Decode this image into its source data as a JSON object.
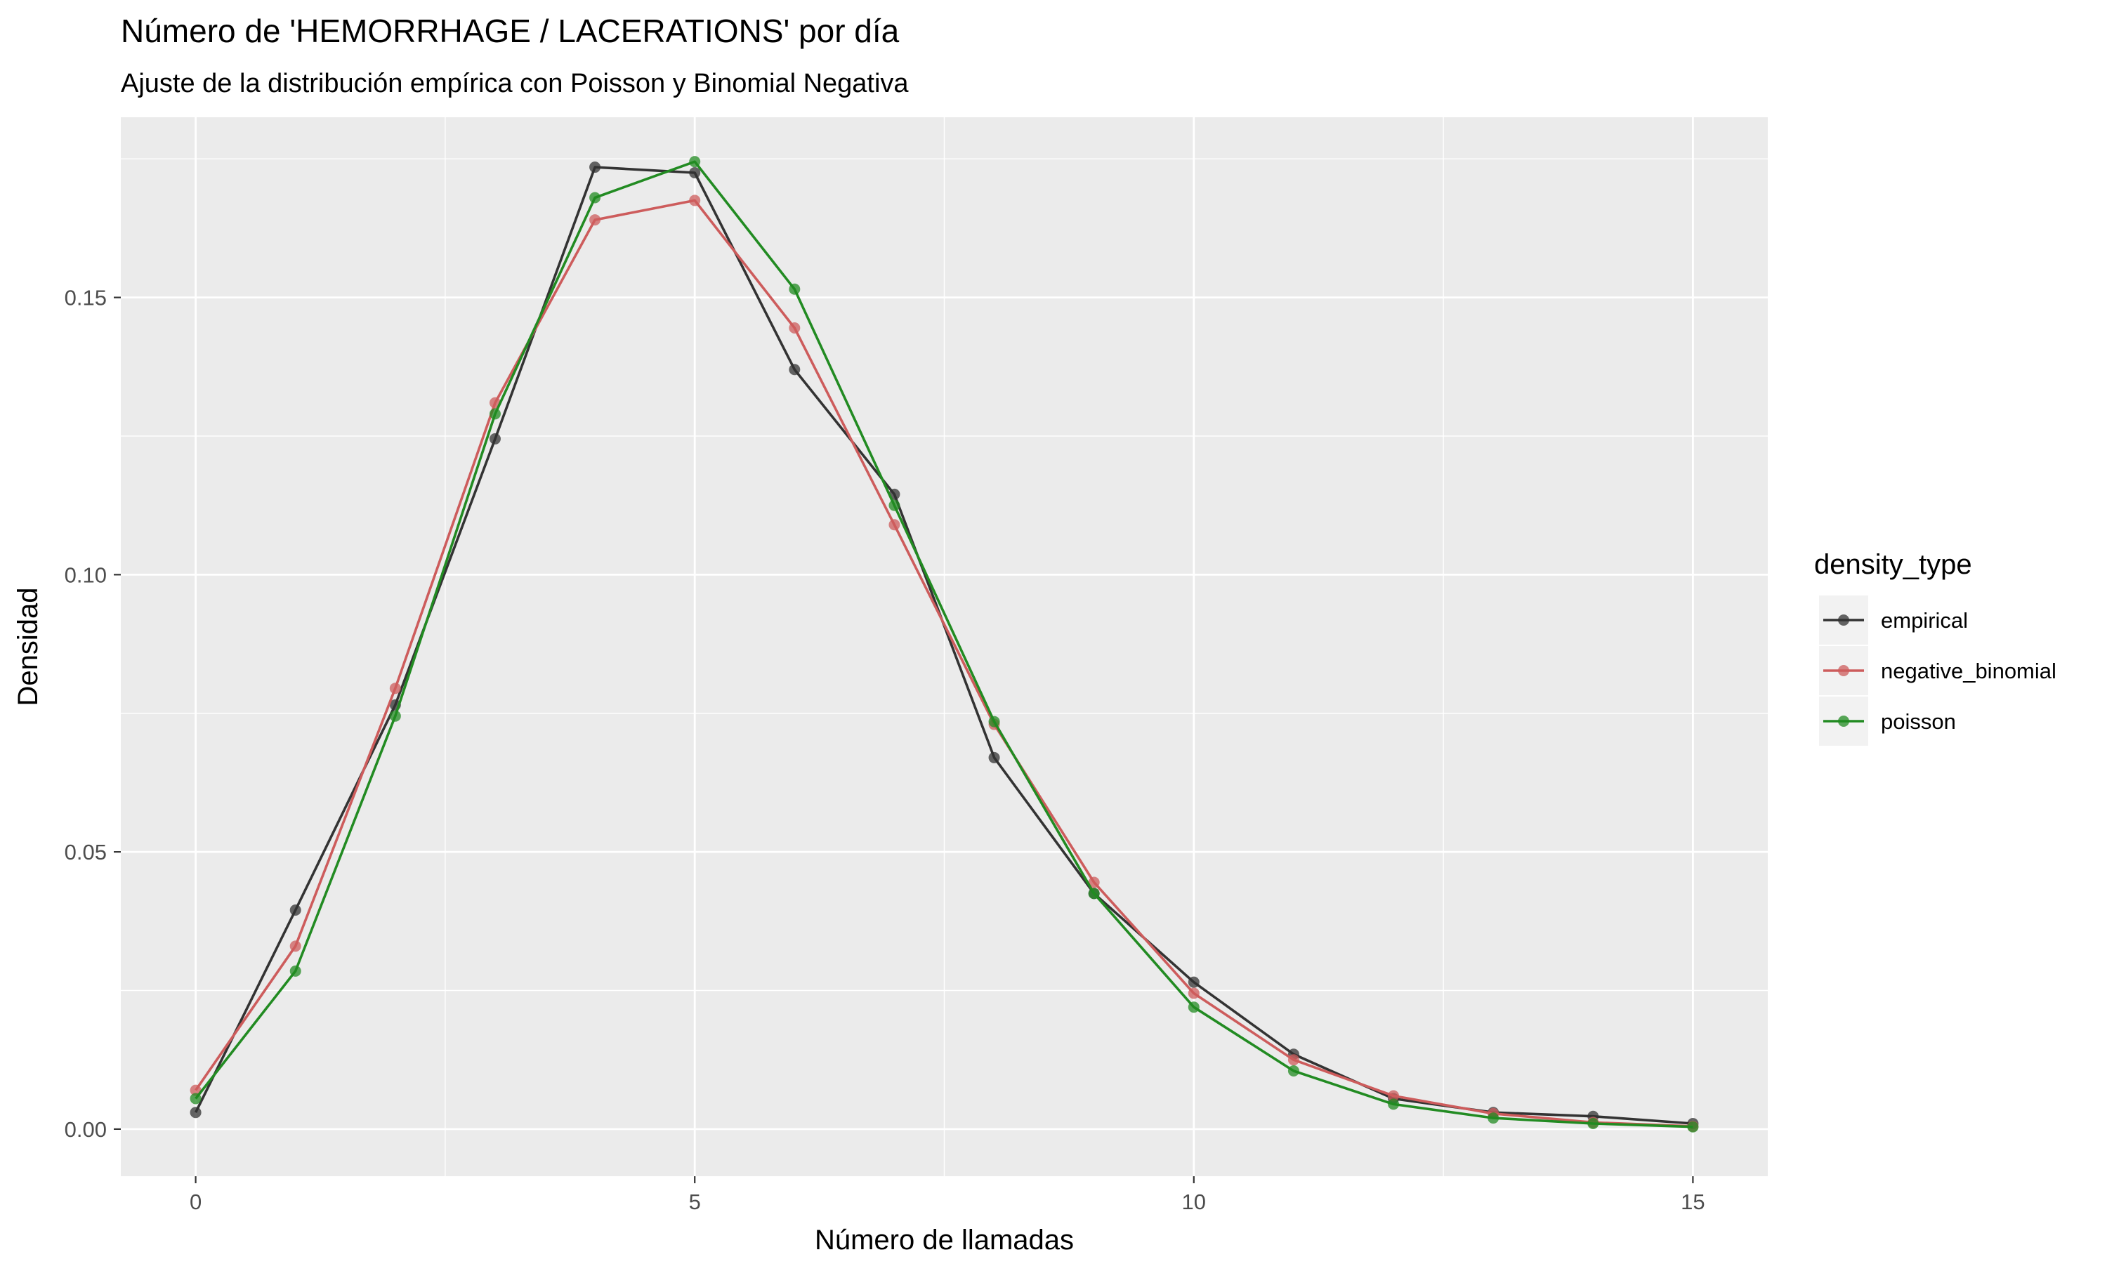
{
  "chart_data": {
    "type": "line",
    "title": "Número de 'HEMORRHAGE / LACERATIONS' por día",
    "subtitle": "Ajuste de la distribución empírica con Poisson y Binomial Negativa",
    "xlabel": "Número de llamadas",
    "ylabel": "Densidad",
    "xlim": [
      -0.75,
      15.75
    ],
    "ylim": [
      -0.0085,
      0.1825
    ],
    "x_ticks": [
      0,
      5,
      10,
      15
    ],
    "x_tick_labels": [
      "0",
      "5",
      "10",
      "15"
    ],
    "y_ticks": [
      0.0,
      0.05,
      0.1,
      0.15
    ],
    "y_tick_labels": [
      "0.00",
      "0.05",
      "0.10",
      "0.15"
    ],
    "grid": true,
    "legend": {
      "title": "density_type",
      "placement": "right"
    },
    "x": [
      0,
      1,
      2,
      3,
      4,
      5,
      6,
      7,
      8,
      9,
      10,
      11,
      12,
      13,
      14,
      15
    ],
    "series": [
      {
        "name": "empirical",
        "color": "#333333",
        "values": [
          0.003,
          0.0395,
          0.0765,
          0.1245,
          0.1735,
          0.1725,
          0.137,
          0.1145,
          0.067,
          0.0425,
          0.0265,
          0.0135,
          0.0055,
          0.003,
          0.0023,
          0.001
        ]
      },
      {
        "name": "negative_binomial",
        "color": "#cd5c5c",
        "values": [
          0.007,
          0.033,
          0.0795,
          0.131,
          0.164,
          0.1675,
          0.1445,
          0.109,
          0.073,
          0.0445,
          0.0245,
          0.0125,
          0.006,
          0.0028,
          0.0012,
          0.0005
        ]
      },
      {
        "name": "poisson",
        "color": "#228b22",
        "values": [
          0.0055,
          0.0285,
          0.0745,
          0.129,
          0.168,
          0.1745,
          0.1515,
          0.1125,
          0.0735,
          0.0425,
          0.022,
          0.0105,
          0.0045,
          0.002,
          0.001,
          0.0004
        ]
      }
    ]
  }
}
